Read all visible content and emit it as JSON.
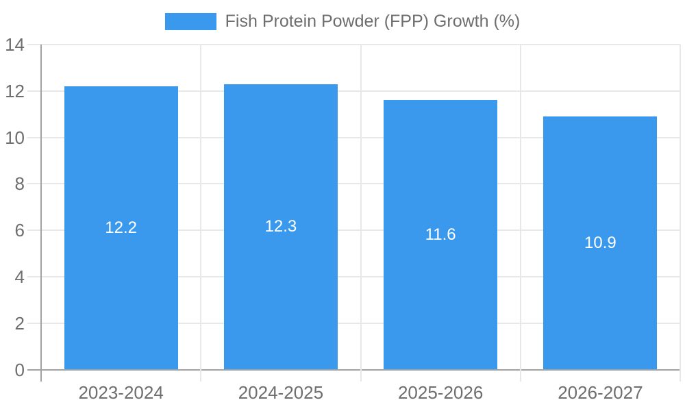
{
  "chart_data": {
    "type": "bar",
    "categories": [
      "2023-2024",
      "2024-2025",
      "2025-2026",
      "2026-2027"
    ],
    "series": [
      {
        "name": "Fish Protein Powder (FPP) Growth (%)",
        "values": [
          12.2,
          12.3,
          11.6,
          10.9
        ],
        "color": "#3A99EC"
      }
    ],
    "data_labels": [
      "12.2",
      "12.3",
      "11.6",
      "10.9"
    ],
    "legend": {
      "position": "top-center",
      "entries": [
        {
          "label": "Fish Protein Powder (FPP) Growth (%)",
          "swatch_color": "#3A99EC"
        }
      ]
    },
    "title": "",
    "xlabel": "",
    "ylabel": "",
    "ylim": [
      0,
      14
    ],
    "yticks": [
      0,
      2,
      4,
      6,
      8,
      10,
      12,
      14
    ],
    "grid": {
      "horizontal": true,
      "vertical": "category-boundaries"
    },
    "colors": {
      "bar": "#3A99EC",
      "axis_text": "#6e6e6e",
      "grid_line": "#e8e8e8",
      "axis_line": "#a2a2a2",
      "data_label": "#ffffff",
      "background": "#ffffff"
    }
  }
}
